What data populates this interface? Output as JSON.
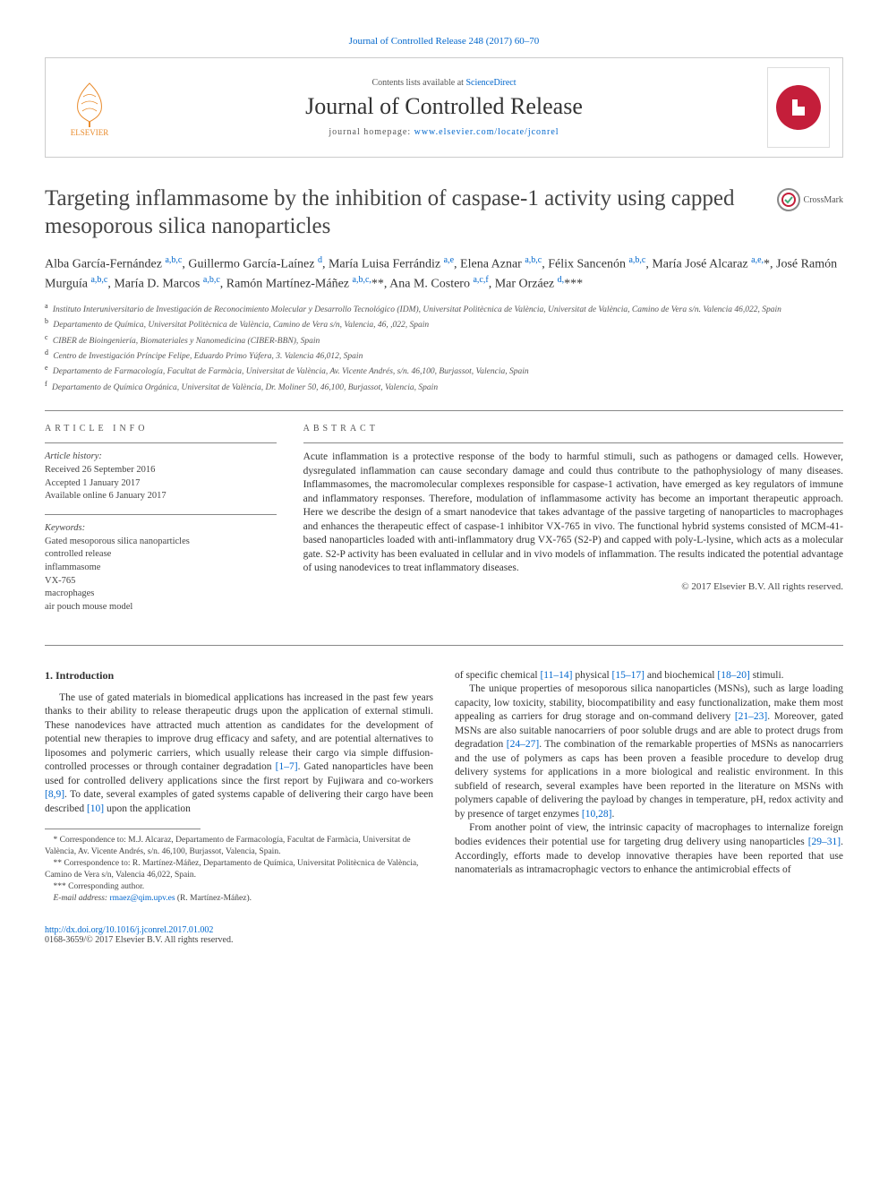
{
  "colors": {
    "link": "#0066cc",
    "text": "#333333",
    "muted": "#555555",
    "rule": "#888888",
    "publisher_orange": "#e98b2c",
    "cover_red": "#c41e3a",
    "background": "#ffffff"
  },
  "journal_ref": "Journal of Controlled Release 248 (2017) 60–70",
  "header": {
    "contents_prefix": "Contents lists available at ",
    "contents_link": "ScienceDirect",
    "journal_name": "Journal of Controlled Release",
    "homepage_prefix": "journal homepage: ",
    "homepage_url": "www.elsevier.com/locate/jconrel",
    "publisher": "ELSEVIER"
  },
  "crossmark_label": "CrossMark",
  "title": "Targeting inflammasome by the inhibition of caspase-1 activity using capped mesoporous silica nanoparticles",
  "authors_html": "Alba García-Fernández <sup>a,b,c</sup>, Guillermo García-Laínez <sup>d</sup>, María Luisa Ferrándiz <sup>a,e</sup>, Elena Aznar <sup>a,b,c</sup>, Félix Sancenón <sup>a,b,c</sup>, María José Alcaraz <sup>a,e,</sup>*, José Ramón Murguía <sup>a,b,c</sup>, María D. Marcos <sup>a,b,c</sup>, Ramón Martínez-Máñez <sup>a,b,c,</sup>**, Ana M. Costero <sup>a,c,f</sup>, Mar Orzáez <sup>d,</sup>***",
  "affiliations": [
    {
      "key": "a",
      "text": "Instituto Interuniversitario de Investigación de Reconocimiento Molecular y Desarrollo Tecnológico (IDM), Universitat Politècnica de València, Universitat de València, Camino de Vera s/n. Valencia 46,022, Spain"
    },
    {
      "key": "b",
      "text": "Departamento de Química, Universitat Politècnica de València, Camino de Vera s/n, Valencia, 46, ,022, Spain"
    },
    {
      "key": "c",
      "text": "CIBER de Bioingeniería, Biomateriales y Nanomedicina (CIBER-BBN), Spain"
    },
    {
      "key": "d",
      "text": "Centro de Investigación Príncipe Felipe, Eduardo Primo Yúfera, 3. Valencia 46,012, Spain"
    },
    {
      "key": "e",
      "text": "Departamento de Farmacología, Facultat de Farmàcia, Universitat de València, Av. Vicente Andrés, s/n. 46,100, Burjassot, Valencia, Spain"
    },
    {
      "key": "f",
      "text": "Departamento de Química Orgánica, Universitat de València, Dr. Moliner 50, 46,100, Burjassot, Valencia, Spain"
    }
  ],
  "article_info": {
    "label": "ARTICLE INFO",
    "history_label": "Article history:",
    "history": [
      "Received 26 September 2016",
      "Accepted 1 January 2017",
      "Available online 6 January 2017"
    ],
    "keywords_label": "Keywords:",
    "keywords": [
      "Gated mesoporous silica nanoparticles",
      "controlled release",
      "inflammasome",
      "VX-765",
      "macrophages",
      "air pouch mouse model"
    ]
  },
  "abstract": {
    "label": "ABSTRACT",
    "text": "Acute inflammation is a protective response of the body to harmful stimuli, such as pathogens or damaged cells. However, dysregulated inflammation can cause secondary damage and could thus contribute to the pathophysiology of many diseases. Inflammasomes, the macromolecular complexes responsible for caspase-1 activation, have emerged as key regulators of immune and inflammatory responses. Therefore, modulation of inflammasome activity has become an important therapeutic approach. Here we describe the design of a smart nanodevice that takes advantage of the passive targeting of nanoparticles to macrophages and enhances the therapeutic effect of caspase-1 inhibitor VX-765 in vivo. The functional hybrid systems consisted of MCM-41-based nanoparticles loaded with anti-inflammatory drug VX-765 (S2-P) and capped with poly-L-lysine, which acts as a molecular gate. S2-P activity has been evaluated in cellular and in vivo models of inflammation. The results indicated the potential advantage of using nanodevices to treat inflammatory diseases.",
    "copyright": "© 2017 Elsevier B.V. All rights reserved."
  },
  "body": {
    "intro_heading": "1. Introduction",
    "left_col_p1": "The use of gated materials in biomedical applications has increased in the past few years thanks to their ability to release therapeutic drugs upon the application of external stimuli. These nanodevices have attracted much attention as candidates for the development of potential new therapies to improve drug efficacy and safety, and are potential alternatives to liposomes and polymeric carriers, which usually release their cargo via simple diffusion-controlled processes or through container degradation [1–7]. Gated nanoparticles have been used for controlled delivery applications since the first report by Fujiwara and co-workers [8,9]. To date, several examples of gated systems capable of delivering their cargo have been described [10] upon the application",
    "right_col_p1": "of specific chemical [11–14] physical [15–17] and biochemical [18–20] stimuli.",
    "right_col_p2": "The unique properties of mesoporous silica nanoparticles (MSNs), such as large loading capacity, low toxicity, stability, biocompatibility and easy functionalization, make them most appealing as carriers for drug storage and on-command delivery [21–23]. Moreover, gated MSNs are also suitable nanocarriers of poor soluble drugs and are able to protect drugs from degradation [24–27]. The combination of the remarkable properties of MSNs as nanocarriers and the use of polymers as caps has been proven a feasible procedure to develop drug delivery systems for applications in a more biological and realistic environment. In this subfield of research, several examples have been reported in the literature on MSNs with polymers capable of delivering the payload by changes in temperature, pH, redox activity and by presence of target enzymes [10,28].",
    "right_col_p3": "From another point of view, the intrinsic capacity of macrophages to internalize foreign bodies evidences their potential use for targeting drug delivery using nanoparticles [29–31]. Accordingly, efforts made to develop innovative therapies have been reported that use nanomaterials as intramacrophagic vectors to enhance the antimicrobial effects of",
    "refs": {
      "r1_7": "[1–7]",
      "r8_9": "[8,9]",
      "r10": "[10]",
      "r11_14": "[11–14]",
      "r15_17": "[15–17]",
      "r18_20": "[18–20]",
      "r21_23": "[21–23]",
      "r24_27": "[24–27]",
      "r10_28": "[10,28]",
      "r29_31": "[29–31]"
    }
  },
  "footnotes": {
    "n1": "* Correspondence to: M.J. Alcaraz, Departamento de Farmacología, Facultat de Farmàcia, Universitat de València, Av. Vicente Andrés, s/n. 46,100, Burjassot, Valencia, Spain.",
    "n2": "** Correspondence to: R. Martínez-Máñez, Departamento de Química, Universitat Politècnica de València, Camino de Vera s/n, Valencia 46,022, Spain.",
    "n3": "*** Corresponding author.",
    "email_label": "E-mail address: ",
    "email": "rmaez@qim.upv.es",
    "email_person": " (R. Martínez-Máñez)."
  },
  "footer": {
    "doi": "http://dx.doi.org/10.1016/j.jconrel.2017.01.002",
    "issn_line": "0168-3659/© 2017 Elsevier B.V. All rights reserved."
  }
}
